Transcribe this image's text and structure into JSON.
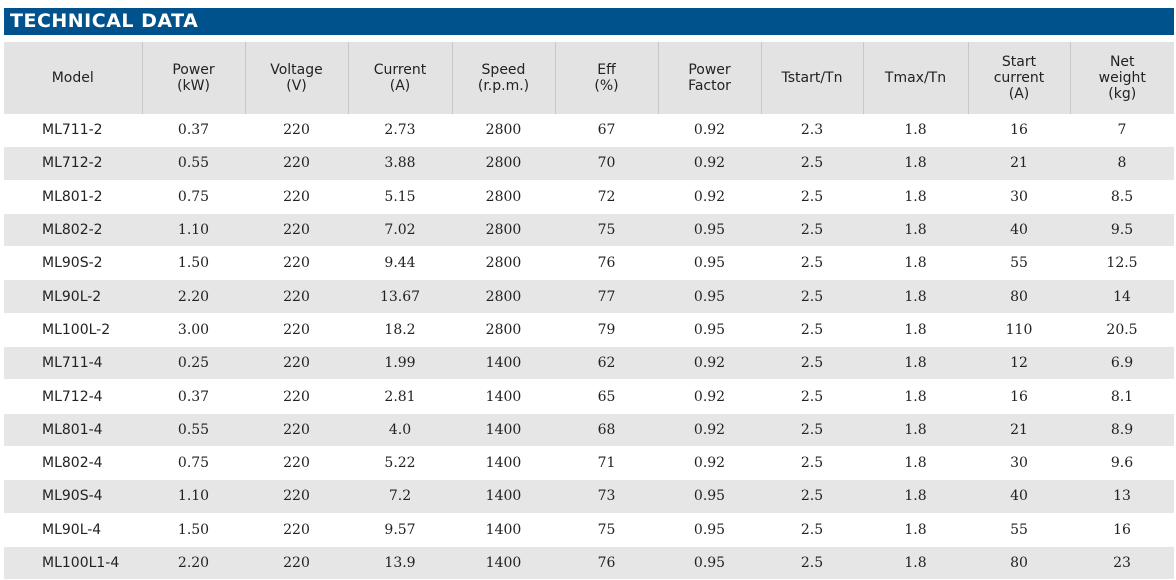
{
  "title": "TECHNICAL DATA",
  "colors": {
    "title_bar": "#00528c",
    "header_bg": "#e3e3e3",
    "alt_row_bg": "#e6e6e6"
  },
  "columns": [
    [
      "Model"
    ],
    [
      "Power",
      "(kW)"
    ],
    [
      "Voltage",
      "(V)"
    ],
    [
      "Current",
      "(A)"
    ],
    [
      "Speed",
      "(r.p.m.)"
    ],
    [
      "Eff",
      "(%)"
    ],
    [
      "Power",
      "Factor"
    ],
    [
      "Tstart/Tn"
    ],
    [
      "Tmax/Tn"
    ],
    [
      "Start",
      "current",
      "(A)"
    ],
    [
      "Net",
      "weight",
      "(kg)"
    ]
  ],
  "rows": [
    [
      "ML711-2",
      "0.37",
      "220",
      "2.73",
      "2800",
      "67",
      "0.92",
      "2.3",
      "1.8",
      "16",
      "7"
    ],
    [
      "ML712-2",
      "0.55",
      "220",
      "3.88",
      "2800",
      "70",
      "0.92",
      "2.5",
      "1.8",
      "21",
      "8"
    ],
    [
      "ML801-2",
      "0.75",
      "220",
      "5.15",
      "2800",
      "72",
      "0.92",
      "2.5",
      "1.8",
      "30",
      "8.5"
    ],
    [
      "ML802-2",
      "1.10",
      "220",
      "7.02",
      "2800",
      "75",
      "0.95",
      "2.5",
      "1.8",
      "40",
      "9.5"
    ],
    [
      "ML90S-2",
      "1.50",
      "220",
      "9.44",
      "2800",
      "76",
      "0.95",
      "2.5",
      "1.8",
      "55",
      "12.5"
    ],
    [
      "ML90L-2",
      "2.20",
      "220",
      "13.67",
      "2800",
      "77",
      "0.95",
      "2.5",
      "1.8",
      "80",
      "14"
    ],
    [
      "ML100L-2",
      "3.00",
      "220",
      "18.2",
      "2800",
      "79",
      "0.95",
      "2.5",
      "1.8",
      "110",
      "20.5"
    ],
    [
      "ML711-4",
      "0.25",
      "220",
      "1.99",
      "1400",
      "62",
      "0.92",
      "2.5",
      "1.8",
      "12",
      "6.9"
    ],
    [
      "ML712-4",
      "0.37",
      "220",
      "2.81",
      "1400",
      "65",
      "0.92",
      "2.5",
      "1.8",
      "16",
      "8.1"
    ],
    [
      "ML801-4",
      "0.55",
      "220",
      "4.0",
      "1400",
      "68",
      "0.92",
      "2.5",
      "1.8",
      "21",
      "8.9"
    ],
    [
      "ML802-4",
      "0.75",
      "220",
      "5.22",
      "1400",
      "71",
      "0.92",
      "2.5",
      "1.8",
      "30",
      "9.6"
    ],
    [
      "ML90S-4",
      "1.10",
      "220",
      "7.2",
      "1400",
      "73",
      "0.95",
      "2.5",
      "1.8",
      "40",
      "13"
    ],
    [
      "ML90L-4",
      "1.50",
      "220",
      "9.57",
      "1400",
      "75",
      "0.95",
      "2.5",
      "1.8",
      "55",
      "16"
    ],
    [
      "ML100L1-4",
      "2.20",
      "220",
      "13.9",
      "1400",
      "76",
      "0.95",
      "2.5",
      "1.8",
      "80",
      "23"
    ]
  ]
}
